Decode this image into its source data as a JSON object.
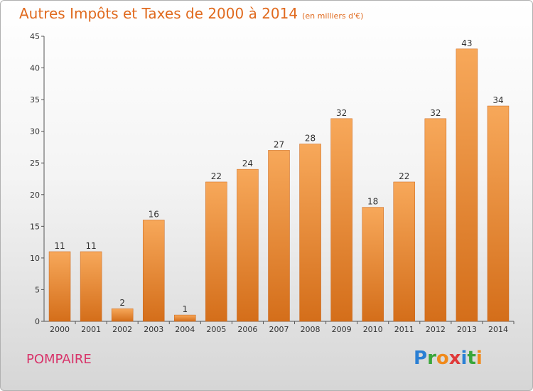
{
  "header": {
    "title": "Autres Impôts et Taxes de 2000 à 2014",
    "unit": "(en milliers d'€)"
  },
  "footer": {
    "commune": "POMPAIRE",
    "brand_letters": [
      {
        "ch": "P",
        "color": "#2a7fd4"
      },
      {
        "ch": "r",
        "color": "#3aa63a"
      },
      {
        "ch": "o",
        "color": "#f08a1c"
      },
      {
        "ch": "x",
        "color": "#e03a3a"
      },
      {
        "ch": "i",
        "color": "#2a7fd4"
      },
      {
        "ch": "t",
        "color": "#3aa63a"
      },
      {
        "ch": "i",
        "color": "#f08a1c"
      }
    ]
  },
  "colors": {
    "bar_light": "#f7a85a",
    "bar_dark": "#d46e1a",
    "title": "#e06a1e",
    "commune": "#d8346a"
  },
  "chart_data": {
    "type": "bar",
    "title": "Autres Impôts et Taxes de 2000 à 2014",
    "subtitle": "(en milliers d'€)",
    "xlabel": "",
    "ylabel": "",
    "categories": [
      "2000",
      "2001",
      "2002",
      "2003",
      "2004",
      "2005",
      "2006",
      "2007",
      "2008",
      "2009",
      "2010",
      "2011",
      "2012",
      "2013",
      "2014"
    ],
    "values": [
      11,
      11,
      2,
      16,
      1,
      22,
      24,
      27,
      28,
      32,
      18,
      22,
      32,
      43,
      34
    ],
    "ylim": [
      0,
      45
    ],
    "yticks": [
      0,
      5,
      10,
      15,
      20,
      25,
      30,
      35,
      40,
      45
    ],
    "grid": false,
    "legend": "none",
    "data_labels": true
  }
}
